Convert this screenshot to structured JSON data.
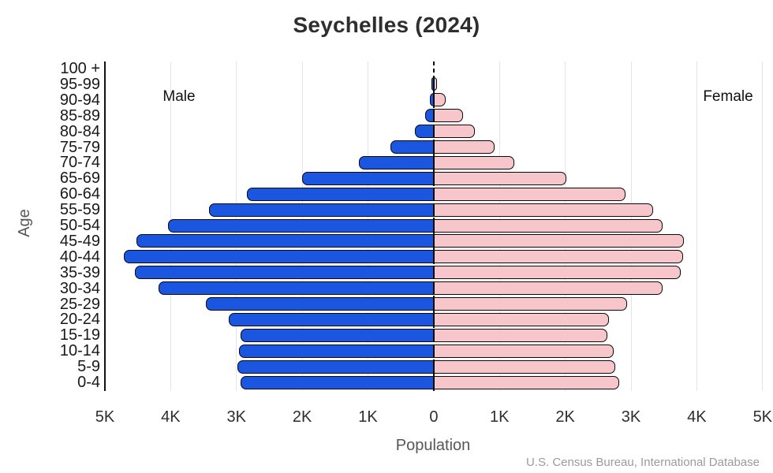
{
  "title": "Seychelles (2024)",
  "legend": {
    "male": "Male",
    "female": "Female"
  },
  "axes": {
    "x_label": "Population",
    "y_label": "Age",
    "x_tick_labels": [
      "5K",
      "4K",
      "3K",
      "2K",
      "1K",
      "0",
      "1K",
      "2K",
      "3K",
      "4K",
      "5K"
    ]
  },
  "source": "U.S. Census Bureau, International Database",
  "colors": {
    "male_bar": "#1b56e0",
    "female_bar": "#f7c6ca",
    "bar_outline": "#0a0a0a",
    "gridline": "#e4e4e4",
    "axis_line": "#111111",
    "center_dashed_line": "#111111",
    "title_text": "#2e2e2e",
    "tick_text": "#2e2e2e",
    "muted_text": "#575757",
    "source_text": "#9b9b9b"
  },
  "chart_data": {
    "type": "bar",
    "subtype": "population_pyramid",
    "title": "Seychelles (2024)",
    "xlabel": "Population",
    "ylabel": "Age",
    "grid": true,
    "x_axis_thousands_range": [
      -5,
      5
    ],
    "x_tick_labels": [
      "5K",
      "4K",
      "3K",
      "2K",
      "1K",
      "0",
      "1K",
      "2K",
      "3K",
      "4K",
      "5K"
    ],
    "categories_top_to_bottom": [
      "100 +",
      "95-99",
      "90-94",
      "85-89",
      "80-84",
      "75-79",
      "70-74",
      "65-69",
      "60-64",
      "55-59",
      "50-54",
      "45-49",
      "40-44",
      "35-39",
      "30-34",
      "25-29",
      "20-24",
      "15-19",
      "10-14",
      "5-9",
      "0-4"
    ],
    "series": [
      {
        "name": "Male",
        "side": "left",
        "color": "#1b56e0",
        "values": [
          10,
          30,
          60,
          130,
          290,
          660,
          1140,
          2000,
          2840,
          3420,
          4040,
          4520,
          4710,
          4540,
          4180,
          3460,
          3120,
          2940,
          2960,
          2980,
          2940
        ]
      },
      {
        "name": "Female",
        "side": "right",
        "color": "#f7c6ca",
        "values": [
          20,
          45,
          180,
          440,
          630,
          930,
          1220,
          2020,
          2920,
          3340,
          3480,
          3800,
          3790,
          3750,
          3480,
          2940,
          2660,
          2640,
          2740,
          2760,
          2820
        ]
      }
    ],
    "units": "people",
    "source": "U.S. Census Bureau, International Database"
  }
}
